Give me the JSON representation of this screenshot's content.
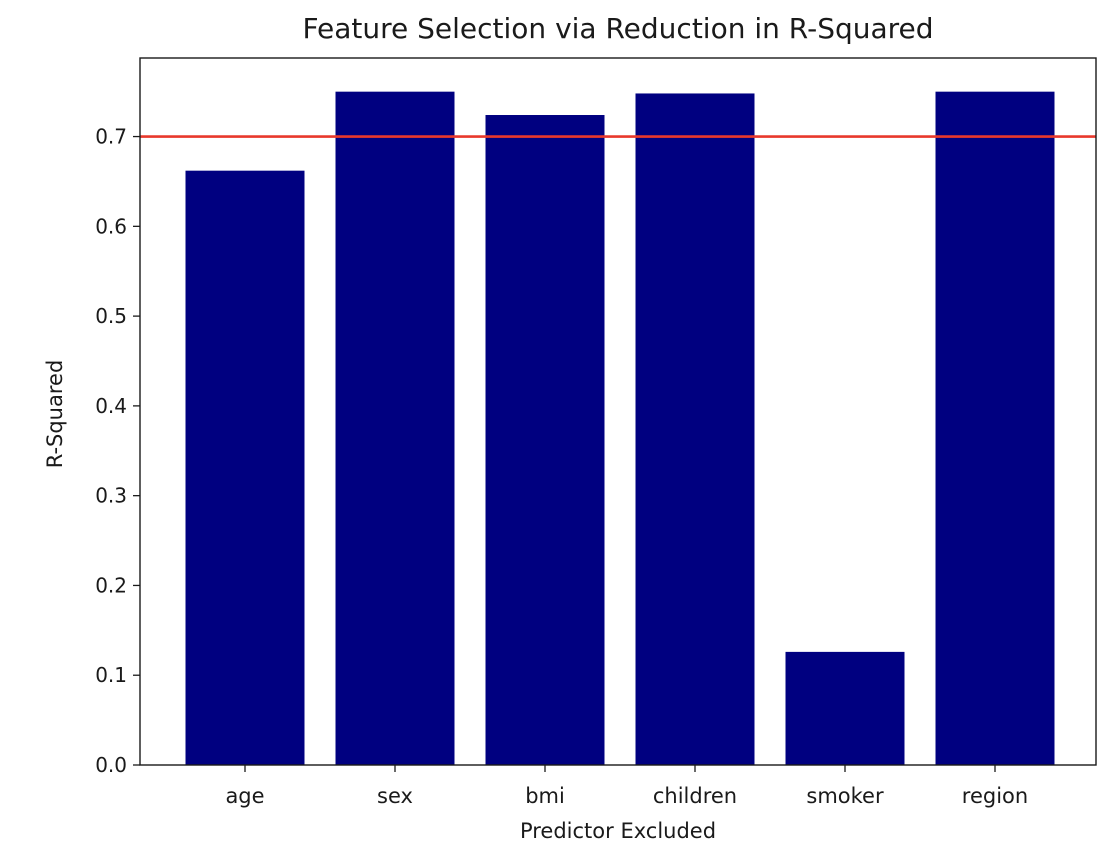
{
  "chart_data": {
    "type": "bar",
    "title": "Feature Selection via Reduction in R-Squared",
    "xlabel": "Predictor Excluded",
    "ylabel": "R-Squared",
    "categories": [
      "age",
      "sex",
      "bmi",
      "children",
      "smoker",
      "region"
    ],
    "values": [
      0.662,
      0.75,
      0.724,
      0.748,
      0.126,
      0.75
    ],
    "ylim": [
      0.0,
      0.7875
    ],
    "yticks": [
      0.0,
      0.1,
      0.2,
      0.3,
      0.4,
      0.5,
      0.6,
      0.7
    ],
    "ytick_labels": [
      "0.0",
      "0.1",
      "0.2",
      "0.3",
      "0.4",
      "0.5",
      "0.6",
      "0.7"
    ],
    "reference_line": {
      "y": 0.7,
      "color": "#e8382c"
    },
    "bar_color": "#000080",
    "grid": false,
    "legend": "none"
  }
}
